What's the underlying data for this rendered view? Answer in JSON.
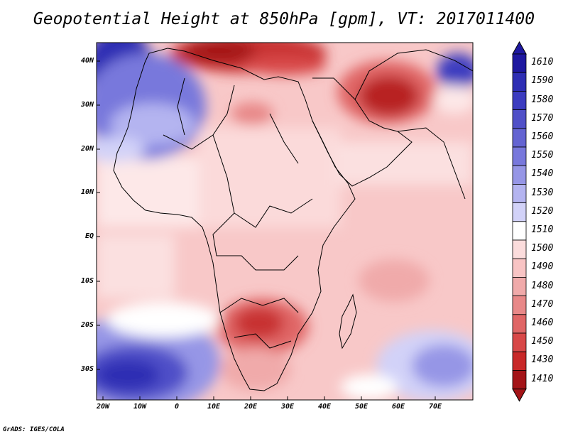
{
  "title": "Geopotential Height at 850hPa [gpm], VT: 2017011400",
  "credit": "GrADS: IGES/COLA",
  "lat_labels": [
    "40N",
    "30N",
    "20N",
    "10N",
    "EQ",
    "10S",
    "20S",
    "30S"
  ],
  "lon_labels": [
    "20W",
    "10W",
    "0",
    "10E",
    "20E",
    "30E",
    "40E",
    "50E",
    "60E",
    "70E"
  ],
  "colorbar": {
    "levels": [
      "1610",
      "1590",
      "1580",
      "1570",
      "1560",
      "1550",
      "1540",
      "1530",
      "1520",
      "1510",
      "1500",
      "1490",
      "1480",
      "1470",
      "1460",
      "1450",
      "1430",
      "1410"
    ],
    "colors": [
      "#1e18a0",
      "#2e2eb4",
      "#3c3cc0",
      "#5050c8",
      "#6464d2",
      "#7878dc",
      "#9696e6",
      "#b4b4f0",
      "#d2d2f8",
      "#ffffff",
      "#fbdcdc",
      "#f8c4c4",
      "#f0aaaa",
      "#e88888",
      "#e06666",
      "#d84848",
      "#c82828",
      "#a41418"
    ]
  }
}
